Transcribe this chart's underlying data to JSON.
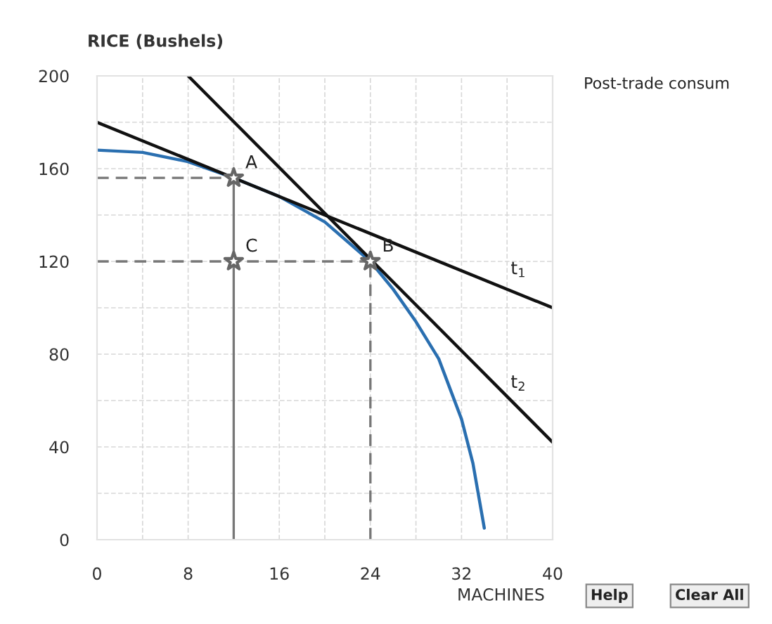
{
  "chart_data": {
    "type": "line",
    "xlabel": "MACHINES",
    "ylabel": "RICE (Bushels)",
    "xlim": [
      0,
      40
    ],
    "ylim": [
      0,
      200
    ],
    "xticks": [
      0,
      8,
      16,
      24,
      32,
      40
    ],
    "yticks": [
      0,
      40,
      80,
      120,
      160,
      200
    ],
    "grid": true,
    "series": [
      {
        "color": "#2a6fb0",
        "line_style": "solid",
        "x": [
          0,
          4,
          8,
          12,
          16,
          20,
          24,
          26,
          28,
          30,
          32,
          33,
          34
        ],
        "values": [
          168,
          167,
          163,
          156,
          148,
          137,
          120,
          108,
          94,
          78,
          52,
          33,
          5
        ]
      },
      {
        "type": "line",
        "color": "#111111",
        "line_style": "solid",
        "x": [
          0,
          40
        ],
        "values": [
          180,
          100
        ]
      },
      {
        "type": "line",
        "color": "#111111",
        "line_style": "solid",
        "x": [
          8,
          40
        ],
        "values": [
          200,
          42
        ]
      },
      {
        "type": "line",
        "color": "#777777",
        "line_style": "dashed",
        "x": [
          0,
          12
        ],
        "values": [
          156,
          156
        ]
      },
      {
        "type": "line",
        "color": "#777777",
        "line_style": "solid",
        "x": [
          12,
          12
        ],
        "values": [
          0,
          156
        ]
      },
      {
        "type": "line",
        "color": "#777777",
        "line_style": "dashed",
        "x": [
          0,
          24
        ],
        "values": [
          120,
          120
        ]
      },
      {
        "type": "line",
        "color": "#777777",
        "line_style": "dashed",
        "x": [
          24,
          24
        ],
        "values": [
          0,
          120
        ]
      },
      {
        "type": "scatter",
        "color": "#666666",
        "marker": "star",
        "x": [
          12,
          24,
          12
        ],
        "values": [
          156,
          120,
          120
        ]
      }
    ],
    "annotations": [
      {
        "text": "A",
        "x": 12,
        "y": 156
      },
      {
        "text": "B",
        "x": 24,
        "y": 120
      },
      {
        "text": "C",
        "x": 12,
        "y": 120
      },
      {
        "text": "t$_{1}$",
        "x": 37,
        "y": 106
      },
      {
        "text": "t$_{2}$",
        "x": 37,
        "y": 57
      },
      "Post-trade consum",
      "Help",
      "Clear All"
    ]
  }
}
